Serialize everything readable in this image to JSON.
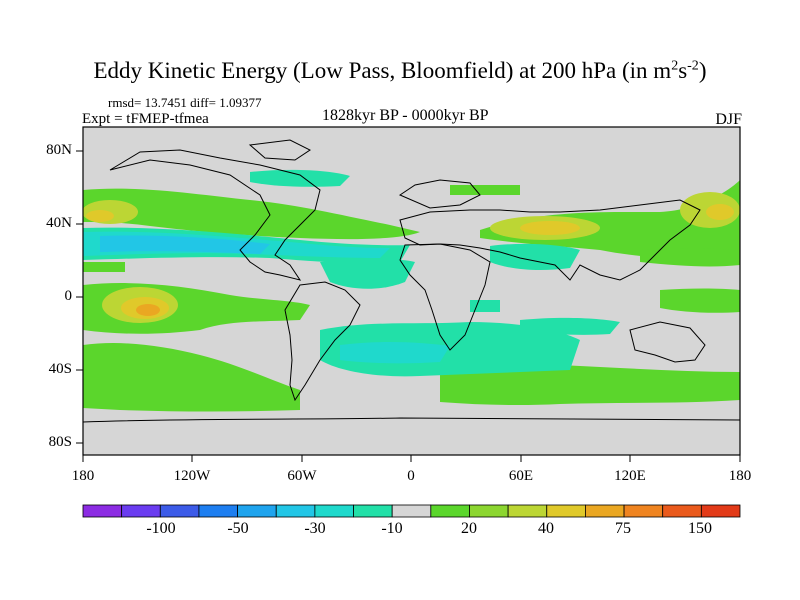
{
  "title": {
    "main": "Eddy Kinetic Energy (Low Pass, Bloomfield) at 200 hPa (in m",
    "exp1": "2",
    "mid": "s",
    "exp2": "-2",
    "end": ")"
  },
  "stats": "rmsd= 13.7451 diff= 1.09377",
  "experiment": "Expt = tFMEP-tfmea",
  "period": "1828kyr BP - 0000kyr BP",
  "season": "DJF",
  "map": {
    "lat_ticks": [
      "80N",
      "40N",
      "0",
      "40S",
      "80S"
    ],
    "lon_ticks": [
      "180",
      "120W",
      "60W",
      "0",
      "60E",
      "120E",
      "180"
    ],
    "ocean_color": "#d6d6d6"
  },
  "colorbar": {
    "colors": [
      "#8c2ce3",
      "#6a3cf0",
      "#3c5be8",
      "#1d7ef0",
      "#1fa4ee",
      "#22c6e6",
      "#1fd9cc",
      "#22e0a8",
      "#d6d6d6",
      "#5bd62c",
      "#8cd630",
      "#bcd634",
      "#e0c92a",
      "#eaa722",
      "#ef8420",
      "#ea5a1c",
      "#e23a18"
    ],
    "labels": [
      "-100",
      "-50",
      "-30",
      "-10",
      "20",
      "40",
      "75",
      "150"
    ]
  },
  "chart_data": {
    "type": "heatmap",
    "title": "Eddy Kinetic Energy (Low Pass, Bloomfield) at 200 hPa (in m2s-2)",
    "projection": "cylindrical equidistant",
    "lon_range": [
      -180,
      180
    ],
    "lat_range": [
      -90,
      90
    ],
    "season": "DJF",
    "difference": "1828kyr BP - 0000kyr BP",
    "rmsd": 13.7451,
    "diff": 1.09377,
    "color_levels": [
      -100,
      -50,
      -30,
      -10,
      20,
      40,
      75,
      150
    ],
    "features": [
      {
        "region": "North Pacific 15N-35N",
        "sign": "negative",
        "approx_value": -30
      },
      {
        "region": "North Pacific 40N",
        "sign": "positive",
        "approx_value": 40
      },
      {
        "region": "Central Pacific equator",
        "sign": "positive",
        "approx_value": 75
      },
      {
        "region": "North Africa / Asia jet 35N",
        "sign": "positive",
        "approx_value": 40
      },
      {
        "region": "South Atlantic / Indian 20S-40S",
        "sign": "negative",
        "approx_value": -10
      },
      {
        "region": "Southern Ocean 50S-60S",
        "sign": "positive",
        "approx_value": 20
      }
    ]
  }
}
